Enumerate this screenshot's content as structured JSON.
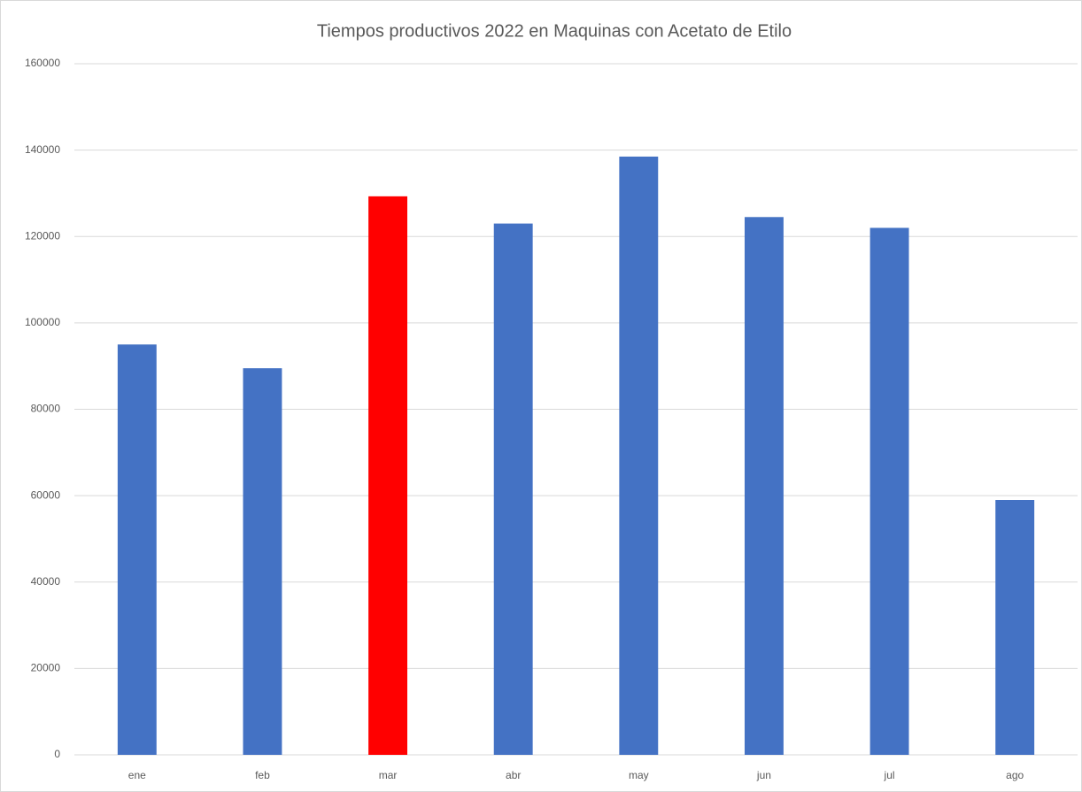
{
  "chart_data": {
    "type": "bar",
    "title": "Tiempos productivos 2022 en Maquinas con Acetato de Etilo",
    "categories": [
      "ene",
      "feb",
      "mar",
      "abr",
      "may",
      "jun",
      "jul",
      "ago"
    ],
    "values": [
      95000,
      89500,
      129300,
      123000,
      138500,
      124500,
      122000,
      59000
    ],
    "colors": [
      "#4472c4",
      "#4472c4",
      "#ff0000",
      "#4472c4",
      "#4472c4",
      "#4472c4",
      "#4472c4",
      "#4472c4"
    ],
    "ylim": [
      0,
      160000
    ],
    "yticks": [
      0,
      20000,
      40000,
      60000,
      80000,
      100000,
      120000,
      140000,
      160000
    ],
    "grid": true
  }
}
